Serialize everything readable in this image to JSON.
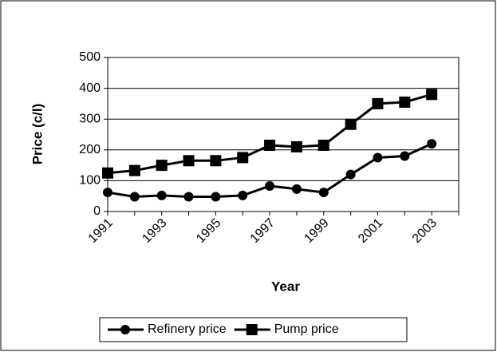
{
  "chart_data": {
    "type": "line",
    "x_label": "Year",
    "y_label": "Price (c/l)",
    "categories": [
      "1991",
      null,
      "1993",
      null,
      "1995",
      null,
      "1997",
      null,
      "1999",
      null,
      "2001",
      null,
      "2003",
      null
    ],
    "series": [
      {
        "name": "Refinery price",
        "color": "#000000",
        "marker": "circle",
        "values": [
          62,
          48,
          52,
          48,
          48,
          52,
          83,
          73,
          62,
          120,
          175,
          180,
          220,
          null
        ]
      },
      {
        "name": "Pump price",
        "color": "#000000",
        "marker": "square",
        "values": [
          125,
          133,
          150,
          165,
          165,
          175,
          215,
          210,
          215,
          283,
          350,
          355,
          380,
          null
        ]
      }
    ],
    "ylim": [
      0,
      500
    ],
    "yticks": [
      0,
      100,
      200,
      300,
      400,
      500
    ],
    "grid": true,
    "legend": "bottom"
  }
}
